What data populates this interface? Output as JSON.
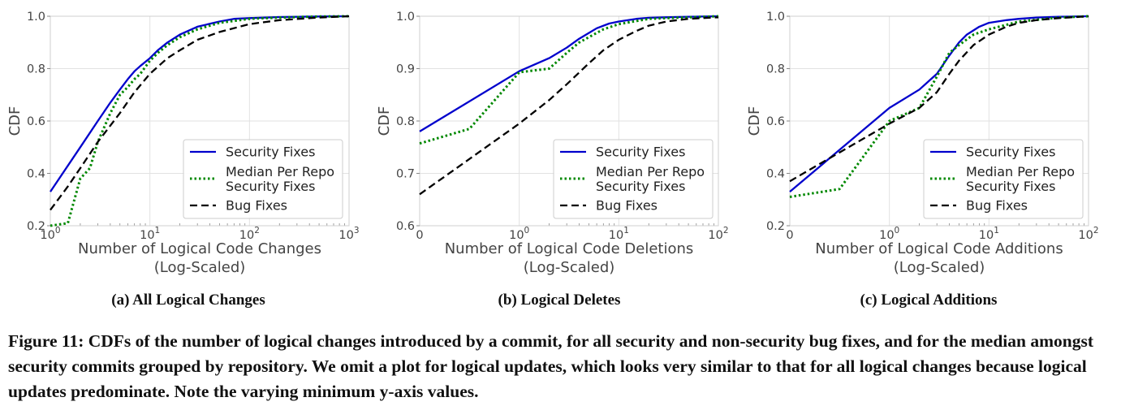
{
  "figure_caption": "Figure 11: CDFs of the number of logical changes introduced by a commit, for all security and non-security bug fixes, and for the median amongst security commits grouped by repository. We omit a plot for logical updates, which looks very similar to that for all logical changes because logical updates predominate. Note the varying minimum y-axis values.",
  "colors": {
    "security": "#0000cc",
    "median": "#008800",
    "bug": "#000000",
    "grid": "#e2e2e2"
  },
  "legend": {
    "security": "Security Fixes",
    "median_line1": "Median Per Repo",
    "median_line2": "Security Fixes",
    "bug": "Bug Fixes"
  },
  "chart_data": [
    {
      "type": "line",
      "subcaption": "(a) All Logical Changes",
      "xlabel_line1": "Number of Logical Code Changes",
      "xlabel_line2": "(Log-Scaled)",
      "ylabel": "CDF",
      "xscale": "log",
      "xlim": [
        1,
        1000
      ],
      "ylim": [
        0.2,
        1.0
      ],
      "yticks": [
        0.2,
        0.4,
        0.6,
        0.8,
        1.0
      ],
      "yticklabels": [
        "0.2",
        "0.4",
        "0.6",
        "0.8",
        "1.0"
      ],
      "xticks": [
        1,
        10,
        100,
        1000
      ],
      "xticklabels": [
        [
          "10",
          "0"
        ],
        [
          "10",
          "1"
        ],
        [
          "10",
          "2"
        ],
        [
          "10",
          "3"
        ]
      ],
      "legend_position": "lower-right",
      "grid": true,
      "series": [
        {
          "key": "security",
          "style": "solid",
          "x": [
            1,
            2,
            3,
            4,
            5,
            6,
            7,
            8,
            10,
            12,
            15,
            20,
            30,
            50,
            70,
            100,
            200,
            500,
            1000
          ],
          "y": [
            0.33,
            0.5,
            0.6,
            0.67,
            0.72,
            0.76,
            0.79,
            0.81,
            0.84,
            0.87,
            0.9,
            0.93,
            0.96,
            0.98,
            0.99,
            0.993,
            0.997,
            0.999,
            1.0
          ]
        },
        {
          "key": "median",
          "style": "dotted",
          "x": [
            1,
            1.5,
            2,
            2.5,
            3,
            4,
            5,
            6,
            7,
            8,
            10,
            12,
            15,
            20,
            30,
            50,
            100,
            200,
            500,
            1000
          ],
          "y": [
            0.2,
            0.21,
            0.38,
            0.42,
            0.52,
            0.63,
            0.7,
            0.73,
            0.76,
            0.78,
            0.83,
            0.86,
            0.89,
            0.92,
            0.95,
            0.975,
            0.99,
            0.995,
            0.999,
            1.0
          ]
        },
        {
          "key": "bug",
          "style": "dashed",
          "x": [
            1,
            1.5,
            2,
            3,
            5,
            7,
            10,
            15,
            20,
            30,
            50,
            100,
            200,
            500,
            1000
          ],
          "y": [
            0.26,
            0.35,
            0.42,
            0.52,
            0.63,
            0.71,
            0.78,
            0.84,
            0.87,
            0.91,
            0.94,
            0.97,
            0.985,
            0.995,
            1.0
          ]
        }
      ]
    },
    {
      "type": "line",
      "subcaption": "(b) Logical Deletes",
      "xlabel_line1": "Number of Logical Code Deletions",
      "xlabel_line2": "(Log-Scaled)",
      "ylabel": "CDF",
      "xscale": "symlog",
      "xlim": [
        0,
        100
      ],
      "ylim": [
        0.6,
        1.0
      ],
      "yticks": [
        0.6,
        0.7,
        0.8,
        0.9,
        1.0
      ],
      "yticklabels": [
        "0.6",
        "0.7",
        "0.8",
        "0.9",
        "1.0"
      ],
      "xticks": [
        0,
        1,
        10,
        100
      ],
      "xticklabels": [
        [
          "0",
          ""
        ],
        [
          "10",
          "0"
        ],
        [
          "10",
          "1"
        ],
        [
          "10",
          "2"
        ]
      ],
      "legend_position": "lower-right",
      "grid": true,
      "series": [
        {
          "key": "security",
          "style": "solid",
          "x": [
            0,
            1,
            2,
            3,
            4,
            5,
            6,
            8,
            10,
            15,
            20,
            30,
            50,
            100
          ],
          "y": [
            0.78,
            0.895,
            0.92,
            0.94,
            0.957,
            0.968,
            0.977,
            0.986,
            0.99,
            0.995,
            0.997,
            0.998,
            0.999,
            1.0
          ]
        },
        {
          "key": "median",
          "style": "dotted",
          "x": [
            0,
            0.5,
            1,
            2,
            3,
            4,
            5,
            7,
            10,
            20,
            50,
            100
          ],
          "y": [
            0.757,
            0.785,
            0.893,
            0.9,
            0.93,
            0.95,
            0.96,
            0.975,
            0.985,
            0.995,
            0.998,
            1.0
          ]
        },
        {
          "key": "bug",
          "style": "dashed",
          "x": [
            0,
            1,
            2,
            3,
            5,
            7,
            10,
            15,
            20,
            30,
            50,
            100
          ],
          "y": [
            0.66,
            0.795,
            0.84,
            0.87,
            0.91,
            0.935,
            0.955,
            0.972,
            0.982,
            0.99,
            0.995,
            0.998
          ]
        }
      ]
    },
    {
      "type": "line",
      "subcaption": "(c) Logical Additions",
      "xlabel_line1": "Number of Logical Code Additions",
      "xlabel_line2": "(Log-Scaled)",
      "ylabel": "CDF",
      "xscale": "symlog",
      "xlim": [
        0,
        100
      ],
      "ylim": [
        0.2,
        1.0
      ],
      "yticks": [
        0.2,
        0.4,
        0.6,
        0.8,
        1.0
      ],
      "yticklabels": [
        "0.2",
        "0.4",
        "0.6",
        "0.8",
        "1.0"
      ],
      "xticks": [
        0,
        1,
        10,
        100
      ],
      "xticklabels": [
        [
          "0",
          ""
        ],
        [
          "10",
          "0"
        ],
        [
          "10",
          "1"
        ],
        [
          "10",
          "2"
        ]
      ],
      "legend_position": "lower-right",
      "grid": true,
      "series": [
        {
          "key": "security",
          "style": "solid",
          "x": [
            0,
            1,
            2,
            3,
            4,
            5,
            6,
            8,
            10,
            15,
            20,
            30,
            50,
            100
          ],
          "y": [
            0.33,
            0.65,
            0.72,
            0.78,
            0.85,
            0.9,
            0.93,
            0.96,
            0.975,
            0.985,
            0.99,
            0.995,
            0.998,
            1.0
          ]
        },
        {
          "key": "median",
          "style": "dotted",
          "x": [
            0,
            0.5,
            1,
            2,
            3,
            4,
            5,
            7,
            10,
            20,
            50,
            100
          ],
          "y": [
            0.31,
            0.34,
            0.6,
            0.65,
            0.77,
            0.86,
            0.89,
            0.93,
            0.95,
            0.98,
            0.995,
            1.0
          ]
        },
        {
          "key": "bug",
          "style": "dashed",
          "x": [
            0,
            0.5,
            1,
            2,
            3,
            4,
            5,
            7,
            10,
            15,
            20,
            30,
            50,
            100
          ],
          "y": [
            0.37,
            0.48,
            0.59,
            0.65,
            0.71,
            0.78,
            0.83,
            0.89,
            0.93,
            0.96,
            0.975,
            0.985,
            0.993,
            1.0
          ]
        }
      ]
    }
  ]
}
